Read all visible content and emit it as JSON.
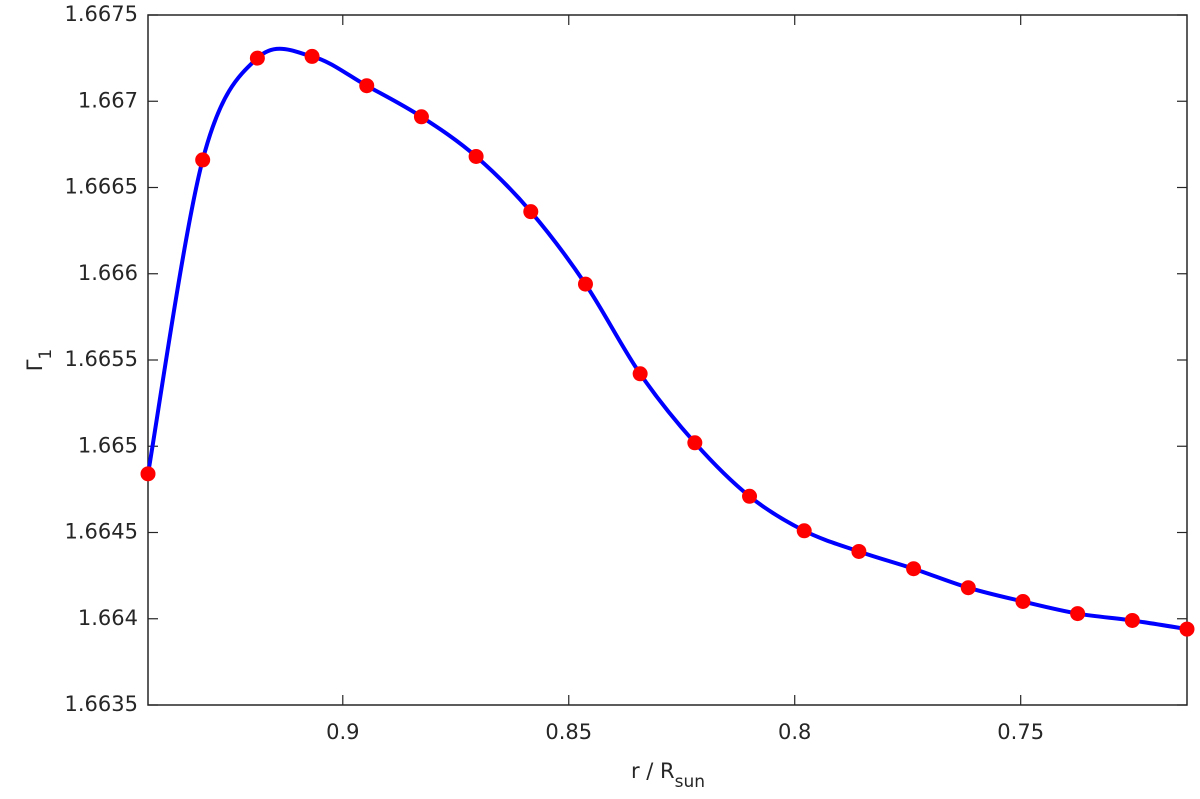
{
  "chart_data": {
    "type": "line",
    "xlabel": {
      "text": "r / R",
      "subscript": "sun"
    },
    "ylabel": {
      "text": "Γ",
      "subscript": "1"
    },
    "x": [
      0.9431,
      0.931,
      0.9189,
      0.9068,
      0.8947,
      0.8826,
      0.8705,
      0.8584,
      0.8463,
      0.8342,
      0.8221,
      0.81,
      0.7979,
      0.7858,
      0.7737,
      0.7616,
      0.7495,
      0.7374,
      0.7253,
      0.7132
    ],
    "series": [
      {
        "color": "#0000ff",
        "marker_color": "#ff0000",
        "values": [
          1.66484,
          1.66666,
          1.66725,
          1.66726,
          1.66709,
          1.66691,
          1.66668,
          1.66636,
          1.66594,
          1.66542,
          1.66502,
          1.66471,
          1.66451,
          1.66439,
          1.66429,
          1.66418,
          1.6641,
          1.66403,
          1.66399,
          1.66394
        ]
      }
    ],
    "xlim": [
      0.9431,
      0.7132
    ],
    "ylim": [
      1.6635,
      1.6675
    ],
    "xticks": [
      0.9,
      0.85,
      0.8,
      0.75
    ],
    "yticks": [
      1.6635,
      1.664,
      1.6645,
      1.665,
      1.6655,
      1.666,
      1.6665,
      1.667,
      1.6675
    ]
  }
}
